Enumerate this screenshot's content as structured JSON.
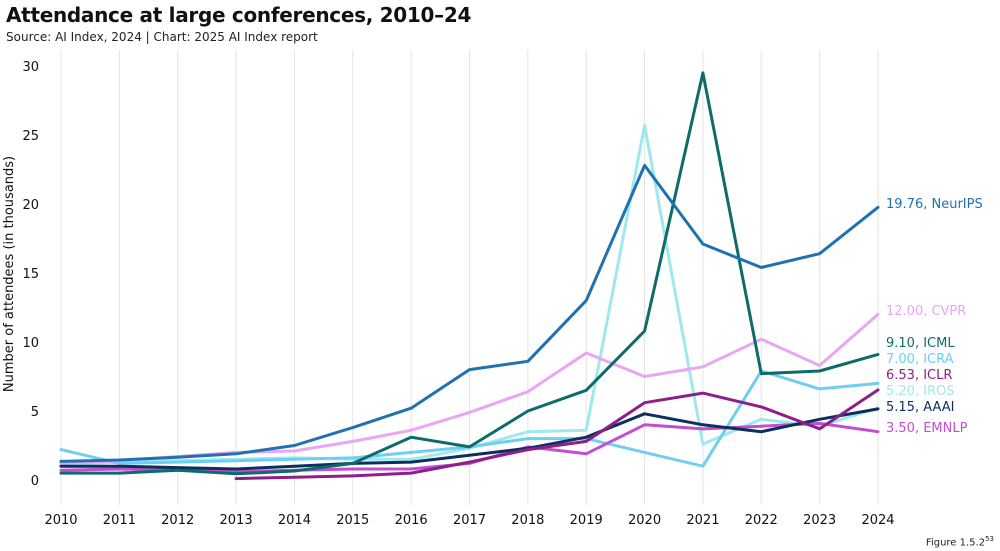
{
  "title": "Attendance at large conferences, 2010–24",
  "subtitle": "Source: AI Index, 2024 | Chart: 2025 AI Index report",
  "figure_label": "Figure 1.5.2",
  "figure_label_sup": "53",
  "chart_data": {
    "type": "line",
    "x": [
      2010,
      2011,
      2012,
      2013,
      2014,
      2015,
      2016,
      2017,
      2018,
      2019,
      2020,
      2021,
      2022,
      2023,
      2024
    ],
    "xlabel": "",
    "ylabel": "Number of attendees (in thousands)",
    "ylim": [
      0,
      30
    ],
    "yticks": [
      0,
      5,
      10,
      15,
      20,
      25,
      30
    ],
    "grid": "vertical",
    "series": [
      {
        "name": "NeurIPS",
        "end_label": "19.76, NeurIPS",
        "color": "#1f72b0",
        "values": [
          1.35,
          1.45,
          1.65,
          1.9,
          2.5,
          3.8,
          5.2,
          8.0,
          8.6,
          13.0,
          22.8,
          17.1,
          15.4,
          16.4,
          19.76
        ]
      },
      {
        "name": "CVPR",
        "end_label": "12.00, CVPR",
        "color": "#e9a6f2",
        "values": [
          1.2,
          1.4,
          1.7,
          2.0,
          2.1,
          2.8,
          3.6,
          4.9,
          6.4,
          9.2,
          7.5,
          8.2,
          10.2,
          8.3,
          12.0
        ]
      },
      {
        "name": "ICML",
        "end_label": "9.10, ICML",
        "color": "#0e6b6b",
        "values": [
          0.5,
          0.5,
          0.7,
          0.45,
          0.65,
          1.2,
          3.1,
          2.4,
          5.0,
          6.5,
          10.8,
          29.5,
          7.7,
          7.9,
          9.1
        ]
      },
      {
        "name": "ICRA",
        "end_label": "7.00, ICRA",
        "color": "#6ecff2",
        "values": [
          2.2,
          1.2,
          1.3,
          1.4,
          1.5,
          1.6,
          2.0,
          2.4,
          3.0,
          3.0,
          2.0,
          1.0,
          7.9,
          6.6,
          7.0
        ]
      },
      {
        "name": "ICLR",
        "end_label": "6.53, ICLR",
        "color": "#8e1f8a",
        "values": [
          null,
          null,
          null,
          0.1,
          0.2,
          0.3,
          0.5,
          1.3,
          2.2,
          2.8,
          5.6,
          6.3,
          5.3,
          3.7,
          6.53
        ]
      },
      {
        "name": "IROS",
        "end_label": "5.20, IROS",
        "color": "#9fe8ee",
        "values": [
          1.1,
          1.3,
          1.4,
          1.5,
          1.6,
          1.5,
          1.5,
          2.3,
          3.5,
          3.6,
          25.7,
          2.6,
          4.4,
          3.9,
          5.2
        ]
      },
      {
        "name": "AAAI",
        "end_label": "5.15, AAAI",
        "color": "#0d2f5e",
        "values": [
          1.0,
          1.0,
          0.9,
          0.8,
          1.0,
          1.2,
          1.3,
          1.8,
          2.3,
          3.1,
          4.8,
          4.0,
          3.5,
          4.4,
          5.15
        ]
      },
      {
        "name": "EMNLP",
        "end_label": "3.50, EMNLP",
        "color": "#c14fcf",
        "values": [
          0.7,
          0.8,
          0.7,
          0.6,
          0.7,
          0.8,
          0.8,
          1.2,
          2.4,
          1.9,
          4.0,
          3.7,
          3.9,
          4.1,
          3.5
        ]
      }
    ]
  }
}
